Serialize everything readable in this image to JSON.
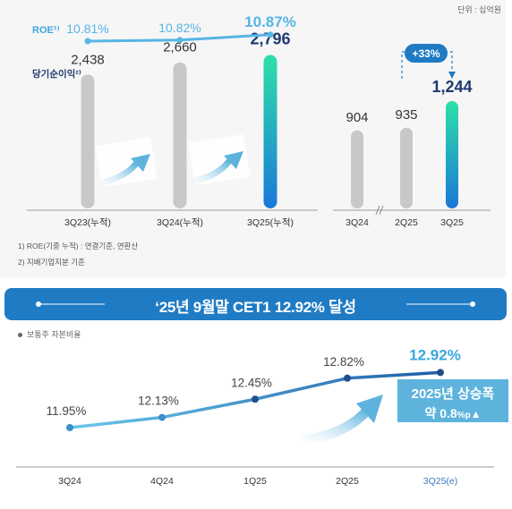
{
  "unit_label": "단위 : 십억원",
  "chart_data": [
    {
      "type": "bar",
      "id": "net-income-cumulative",
      "categories": [
        "3Q23(누적)",
        "3Q24(누적)",
        "3Q25(누적)"
      ],
      "series": [
        {
          "name": "당기순이익²⁾",
          "values": [
            2438,
            2660,
            2796
          ],
          "labels": [
            "2,438",
            "2,660",
            "2,796"
          ]
        }
      ],
      "overlay_line": {
        "name": "ROE¹⁾",
        "values": [
          10.81,
          10.82,
          10.87
        ],
        "labels": [
          "10.81%",
          "10.82%",
          "10.87%"
        ]
      },
      "ylim": [
        0,
        2900
      ]
    },
    {
      "type": "bar",
      "id": "net-income-quarterly",
      "categories": [
        "3Q24",
        "2Q25",
        "3Q25"
      ],
      "values": [
        904,
        935,
        1244
      ],
      "labels": [
        "904",
        "935",
        "1,244"
      ],
      "annotation": "+33%",
      "ylim": [
        0,
        1300
      ]
    },
    {
      "type": "line",
      "id": "cet1-ratio",
      "series_label": "보통주 자본비율",
      "categories": [
        "3Q24",
        "4Q24",
        "1Q25",
        "2Q25",
        "3Q25(e)"
      ],
      "values": [
        11.95,
        12.13,
        12.45,
        12.82,
        12.92
      ],
      "labels": [
        "11.95%",
        "12.13%",
        "12.45%",
        "12.82%",
        "12.92%"
      ],
      "ylim": [
        11.5,
        13.1
      ]
    }
  ],
  "footnotes": [
    "1) ROE(기중 누적) : 연결기준, 연환산",
    "2) 지배기업지분 기준"
  ],
  "banner": {
    "title": "‘25년 9월말 CET1 12.92% 달성"
  },
  "callout": {
    "line1": "2025년 상승폭",
    "line2_prefix": "약 0.8",
    "line2_unit": "%p"
  },
  "colors": {
    "accent_blue": "#1f7bc4",
    "highlight_bar_top": "#2ee0a8",
    "highlight_bar_bottom": "#1a78d8",
    "gray_bar": "#c8c8c8",
    "roe_line": "#56b5e4",
    "dark_navy": "#1e3a6d",
    "callout_bg": "#5eb3dd"
  }
}
